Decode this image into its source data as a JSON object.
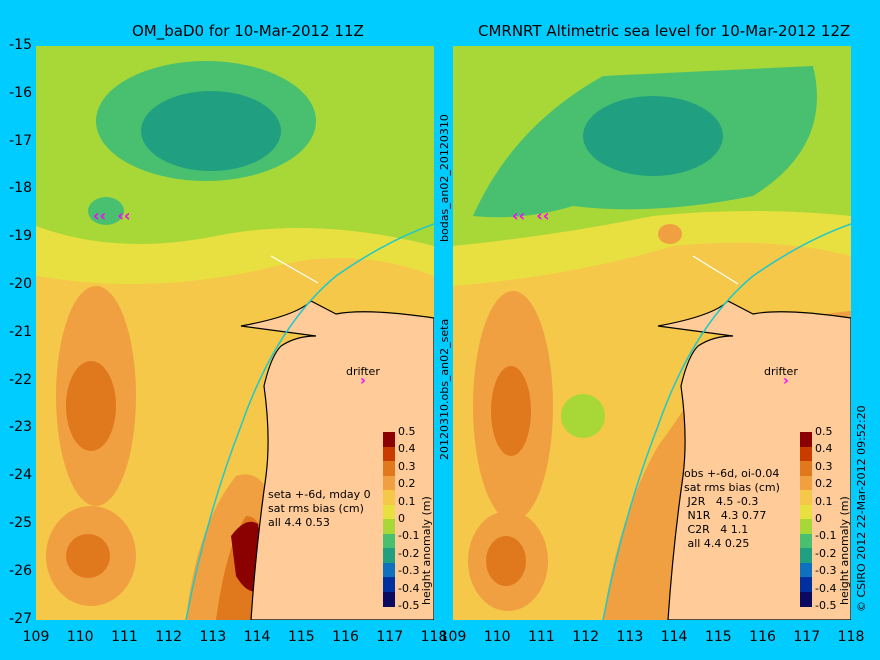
{
  "panels": [
    {
      "title": "OM_baD0 for 10-Mar-2012 11Z",
      "stats": "seta +-6d, mday 0\nsat rms bias (cm)\nall 4.4 0.53",
      "drifter_label": "drifter"
    },
    {
      "title": "CMRNRT Altimetric sea level  for 10-Mar-2012 12Z",
      "stats": "obs +-6d, oi-0.04\nsat rms bias (cm)\n J2R   4.5 -0.3\n N1R   4.3 0.77\n C2R   4 1.1\n all 4.4 0.25",
      "drifter_label": "drifter"
    }
  ],
  "axes": {
    "y_ticks": [
      "-15",
      "-16",
      "-17",
      "-18",
      "-19",
      "-20",
      "-21",
      "-22",
      "-23",
      "-24",
      "-25",
      "-26",
      "-27"
    ],
    "x_ticks": [
      "109",
      "110",
      "111",
      "112",
      "113",
      "114",
      "115",
      "116",
      "117",
      "118"
    ],
    "lat_range": [
      -27,
      -15
    ],
    "lon_range": [
      109,
      118
    ]
  },
  "colorbar": {
    "label": "height anomaly (m)",
    "ticks": [
      "0.5",
      "0.4",
      "0.3",
      "0.2",
      "0.1",
      "0",
      "-0.1",
      "-0.2",
      "-0.3",
      "-0.4",
      "-0.5"
    ],
    "colors": [
      "#8b0000",
      "#c83c00",
      "#e0781e",
      "#f0a040",
      "#f5c84a",
      "#e8e040",
      "#a8d838",
      "#48c070",
      "#20a080",
      "#1070c0",
      "#0030a0",
      "#0a0a60"
    ]
  },
  "side_labels": {
    "left_vertical": "20120310.obs_an02_seta",
    "left_vertical_top": "bodas_an02_20120310",
    "right_vertical": "© CSIRO 2012   22-Mar-2012 09:52:20"
  },
  "colors": {
    "land": "#ffcc99",
    "background": "#00ccff",
    "coastline": "#000000",
    "shelf_line": "#20c8c8",
    "arrow": "#ff00ff"
  }
}
